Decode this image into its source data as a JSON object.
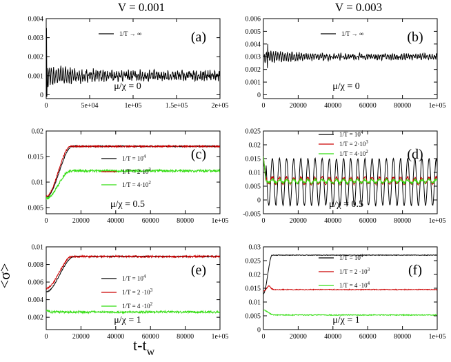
{
  "figure": {
    "column_titles": [
      "V = 0.001",
      "V = 0.003"
    ],
    "ylabel": "<σ>",
    "xlabel": "t-t",
    "xlabel_sub": "w"
  },
  "colors": {
    "black": "#000000",
    "red": "#cc0000",
    "green": "#33dd11"
  },
  "chart_data": [
    {
      "type": "line",
      "panel": "(a)",
      "note": "μ/χ = 0",
      "xlim": [
        0,
        200000
      ],
      "ylim": [
        -0.0002,
        0.004
      ],
      "xticks": [
        "0",
        "5e+04",
        "1e+05",
        "1.5e+05",
        "2e+05"
      ],
      "yticks": [
        "0",
        "0.001",
        "0.002",
        "0.003",
        "0.004"
      ],
      "legend_position": "top-center",
      "series": [
        {
          "name": "1/T → ∞",
          "color": "black",
          "plateau": 0.001,
          "start": 0.0005,
          "osc": 0.0004,
          "noise": 0.0002
        }
      ]
    },
    {
      "type": "line",
      "panel": "(b)",
      "note": "μ/χ = 0",
      "xlim": [
        0,
        100000
      ],
      "ylim": [
        -0.0003,
        0.006
      ],
      "xticks": [
        "0",
        "20000",
        "40000",
        "60000",
        "80000",
        "1e+05"
      ],
      "yticks": [
        "0",
        "0.001",
        "0.002",
        "0.003",
        "0.004",
        "0.005",
        "0.006"
      ],
      "legend_position": "top-center",
      "series": [
        {
          "name": "1/T → ∞",
          "color": "black",
          "plateau": 0.003,
          "start": 0.003,
          "osc": 0.0004,
          "noise": 0.00015
        }
      ]
    },
    {
      "type": "line",
      "panel": "(c)",
      "note": "μ/χ = 0.5",
      "xlim": [
        0,
        100000
      ],
      "ylim": [
        0.0038,
        0.02
      ],
      "xticks": [
        "0",
        "20000",
        "40000",
        "60000",
        "80000",
        "1e+05"
      ],
      "yticks": [
        "0.005",
        "0.01",
        "0.015",
        "0.02"
      ],
      "legend_position": "center-right",
      "series": [
        {
          "name": "1/T = 10",
          "sup": "4",
          "color": "black",
          "start": 0.007,
          "plateau": 0.017,
          "rise_end": 15000,
          "noise": 0.00012
        },
        {
          "name": "1/T = 2·10",
          "sup": "3",
          "color": "red",
          "start": 0.0072,
          "plateau": 0.017,
          "rise_end": 14000,
          "noise": 0.00015
        },
        {
          "name": "1/T = 4·10",
          "sup": "2",
          "color": "green",
          "start": 0.0068,
          "plateau": 0.0122,
          "rise_end": 14000,
          "noise": 0.00025
        }
      ]
    },
    {
      "type": "line",
      "panel": "(d)",
      "note": "μ/χ = 0.5",
      "xlim": [
        0,
        100000
      ],
      "ylim": [
        -0.005,
        0.025
      ],
      "xticks": [
        "0",
        "20000",
        "40000",
        "60000",
        "80000",
        "1e+05"
      ],
      "yticks": [
        "-0.005",
        "0",
        "0.005",
        "0.01",
        "0.015",
        "0.02",
        "0.025"
      ],
      "legend_position": "top-right",
      "series": [
        {
          "name": "1/T = 10",
          "sup": "4",
          "color": "black",
          "plateau": 0.0065,
          "osc": 0.0085,
          "period": 4100,
          "noise": 0.0002
        },
        {
          "name": "1/T = 2·10",
          "sup": "3",
          "color": "red",
          "plateau": 0.007,
          "osc": 0.0012,
          "period": 4100,
          "noise": 0.0004
        },
        {
          "name": "1/T = 4·10",
          "sup": "2",
          "color": "green",
          "plateau": 0.0068,
          "osc": 0.0006,
          "period": 4100,
          "noise": 0.0005
        }
      ]
    },
    {
      "type": "line",
      "panel": "(e)",
      "note": "μ/χ = 1",
      "xlim": [
        0,
        100000
      ],
      "ylim": [
        0.0006,
        0.01
      ],
      "xticks": [
        "0",
        "20000",
        "40000",
        "60000",
        "80000",
        "1e+05"
      ],
      "yticks": [
        "0.002",
        "0.004",
        "0.006",
        "0.008",
        "0.01"
      ],
      "legend_position": "center-right",
      "series": [
        {
          "name": "1/T = 10",
          "sup": "4",
          "color": "black",
          "start": 0.0049,
          "plateau": 0.0089,
          "rise_end": 16000,
          "noise": 6e-05
        },
        {
          "name": "1/T = 2 ·10",
          "sup": "3",
          "color": "red",
          "start": 0.0053,
          "plateau": 0.0089,
          "rise_end": 15000,
          "noise": 0.0001
        },
        {
          "name": "1/T = 4 ·10",
          "sup": "2",
          "color": "green",
          "start": 0.0028,
          "plateau": 0.0026,
          "rise_end": 3000,
          "noise": 0.00012
        }
      ]
    },
    {
      "type": "line",
      "panel": "(f)",
      "note": "μ/χ = 1",
      "xlim": [
        0,
        100000
      ],
      "ylim": [
        0.0,
        0.03
      ],
      "xticks": [
        "0",
        "20000",
        "40000",
        "60000",
        "80000",
        "1e+05"
      ],
      "yticks": [
        "0",
        "0.005",
        "0.01",
        "0.015",
        "0.02",
        "0.025",
        "0.03"
      ],
      "legend_position": "center-right",
      "series": [
        {
          "name": "1/T = 10",
          "sup": "4",
          "color": "black",
          "start": 0.013,
          "plateau": 0.027,
          "rise_end": 5000,
          "noise": 0.0001
        },
        {
          "name": "1/T = 2 ·10",
          "sup": "3",
          "color": "red",
          "start": 0.014,
          "plateau": 0.0145,
          "bump": 0.0015,
          "rise_end": 6000,
          "noise": 0.00015
        },
        {
          "name": "1/T = 4 ·10",
          "sup": "4",
          "color": "green",
          "start": 0.007,
          "plateau": 0.0053,
          "rise_end": 6000,
          "noise": 0.00015
        }
      ]
    }
  ]
}
